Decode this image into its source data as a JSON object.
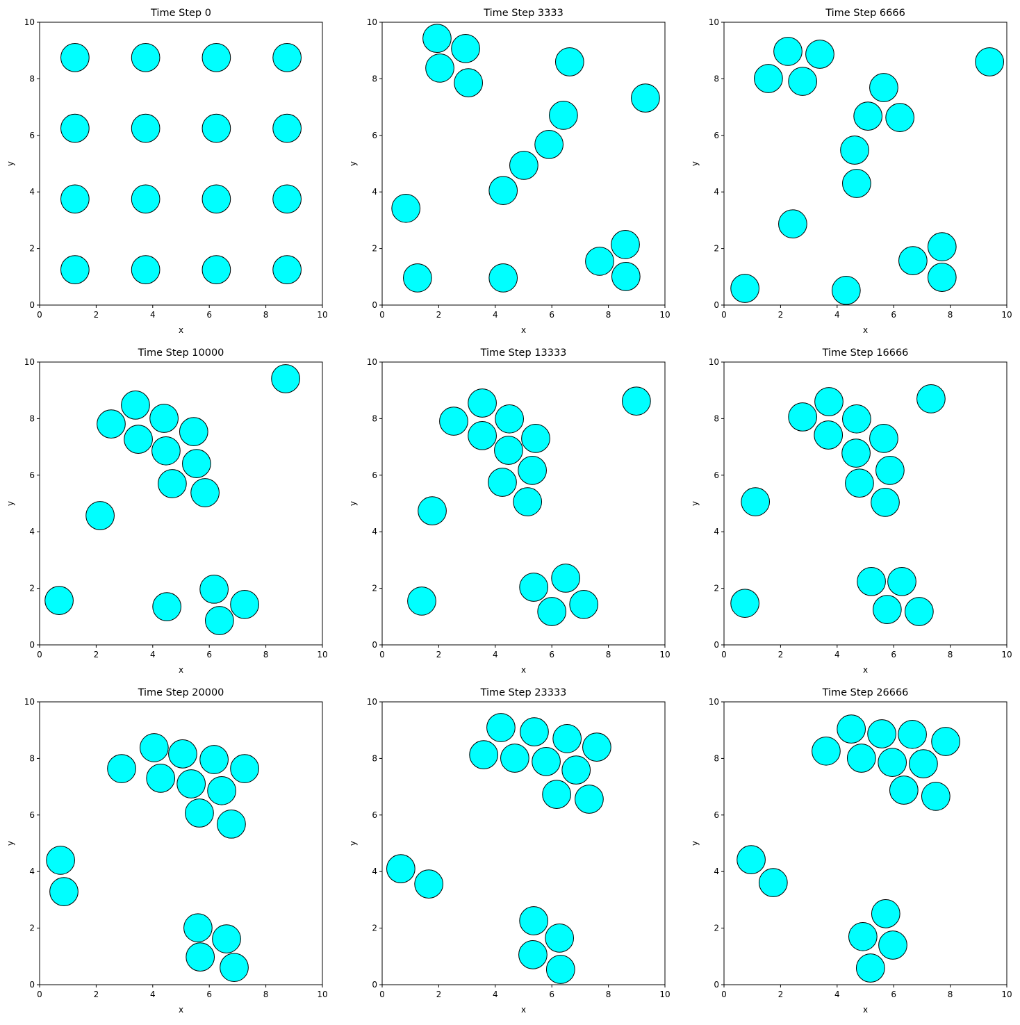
{
  "chart_data": {
    "type": "scatter",
    "marker_color": "#00ffff",
    "marker_edge": "#000000",
    "xlabel": "x",
    "ylabel": "y",
    "xlim": [
      0,
      10
    ],
    "ylim": [
      0,
      10
    ],
    "ticks": [
      "0",
      "2",
      "4",
      "6",
      "8",
      "10"
    ],
    "panels": [
      {
        "title": "Time Step 0",
        "points": [
          [
            1.25,
            8.75
          ],
          [
            3.75,
            8.75
          ],
          [
            6.25,
            8.75
          ],
          [
            8.75,
            8.75
          ],
          [
            1.25,
            6.25
          ],
          [
            3.75,
            6.25
          ],
          [
            6.25,
            6.25
          ],
          [
            8.75,
            6.25
          ],
          [
            1.25,
            3.75
          ],
          [
            3.75,
            3.75
          ],
          [
            6.25,
            3.75
          ],
          [
            8.75,
            3.75
          ],
          [
            1.25,
            1.25
          ],
          [
            3.75,
            1.25
          ],
          [
            6.25,
            1.25
          ],
          [
            8.75,
            1.25
          ]
        ]
      },
      {
        "title": "Time Step 3333",
        "points": [
          [
            1.94,
            9.43
          ],
          [
            2.95,
            9.07
          ],
          [
            2.04,
            8.38
          ],
          [
            3.05,
            7.86
          ],
          [
            6.63,
            8.6
          ],
          [
            9.31,
            7.32
          ],
          [
            6.41,
            6.71
          ],
          [
            5.9,
            5.68
          ],
          [
            5.01,
            4.94
          ],
          [
            4.28,
            4.05
          ],
          [
            0.84,
            3.42
          ],
          [
            1.25,
            0.96
          ],
          [
            4.28,
            0.96
          ],
          [
            7.69,
            1.55
          ],
          [
            8.6,
            2.14
          ],
          [
            8.62,
            1.01
          ]
        ]
      },
      {
        "title": "Time Step 6666",
        "points": [
          [
            2.26,
            8.97
          ],
          [
            3.39,
            8.87
          ],
          [
            1.57,
            8.01
          ],
          [
            2.78,
            7.91
          ],
          [
            9.39,
            8.6
          ],
          [
            5.65,
            7.69
          ],
          [
            5.09,
            6.68
          ],
          [
            6.22,
            6.63
          ],
          [
            4.62,
            5.48
          ],
          [
            4.69,
            4.3
          ],
          [
            2.43,
            2.87
          ],
          [
            0.74,
            0.59
          ],
          [
            4.32,
            0.52
          ],
          [
            6.68,
            1.57
          ],
          [
            7.71,
            2.06
          ],
          [
            7.71,
            0.98
          ]
        ]
      },
      {
        "title": "Time Step 10000",
        "points": [
          [
            8.7,
            9.41
          ],
          [
            3.39,
            8.48
          ],
          [
            2.53,
            7.81
          ],
          [
            4.4,
            8.01
          ],
          [
            5.45,
            7.54
          ],
          [
            3.49,
            7.27
          ],
          [
            4.47,
            6.86
          ],
          [
            5.55,
            6.41
          ],
          [
            4.69,
            5.7
          ],
          [
            5.85,
            5.38
          ],
          [
            2.14,
            4.57
          ],
          [
            0.69,
            1.57
          ],
          [
            4.5,
            1.35
          ],
          [
            6.17,
            1.97
          ],
          [
            7.25,
            1.43
          ],
          [
            6.36,
            0.86
          ]
        ]
      },
      {
        "title": "Time Step 13333",
        "points": [
          [
            8.99,
            8.62
          ],
          [
            3.54,
            8.55
          ],
          [
            2.53,
            7.91
          ],
          [
            4.5,
            7.99
          ],
          [
            3.54,
            7.4
          ],
          [
            5.43,
            7.3
          ],
          [
            4.47,
            6.88
          ],
          [
            5.31,
            6.17
          ],
          [
            4.25,
            5.75
          ],
          [
            5.14,
            5.06
          ],
          [
            1.77,
            4.74
          ],
          [
            1.4,
            1.55
          ],
          [
            5.36,
            2.04
          ],
          [
            6.49,
            2.36
          ],
          [
            7.13,
            1.43
          ],
          [
            6.0,
            1.18
          ]
        ]
      },
      {
        "title": "Time Step 16666",
        "points": [
          [
            7.32,
            8.7
          ],
          [
            3.71,
            8.6
          ],
          [
            2.78,
            8.06
          ],
          [
            4.69,
            7.99
          ],
          [
            3.69,
            7.42
          ],
          [
            5.65,
            7.3
          ],
          [
            4.67,
            6.78
          ],
          [
            5.87,
            6.17
          ],
          [
            4.79,
            5.72
          ],
          [
            5.7,
            5.04
          ],
          [
            1.11,
            5.06
          ],
          [
            0.74,
            1.47
          ],
          [
            5.21,
            2.24
          ],
          [
            6.29,
            2.24
          ],
          [
            5.77,
            1.25
          ],
          [
            6.9,
            1.18
          ]
        ]
      },
      {
        "title": "Time Step 20000",
        "points": [
          [
            4.05,
            8.38
          ],
          [
            5.06,
            8.16
          ],
          [
            2.9,
            7.64
          ],
          [
            6.17,
            7.96
          ],
          [
            7.25,
            7.64
          ],
          [
            4.28,
            7.3
          ],
          [
            5.36,
            7.1
          ],
          [
            6.44,
            6.86
          ],
          [
            5.65,
            6.07
          ],
          [
            6.78,
            5.68
          ],
          [
            0.74,
            4.4
          ],
          [
            0.86,
            3.29
          ],
          [
            5.6,
            2.01
          ],
          [
            6.61,
            1.62
          ],
          [
            5.68,
            0.98
          ],
          [
            6.88,
            0.61
          ]
        ]
      },
      {
        "title": "Time Step 23333",
        "points": [
          [
            4.2,
            9.09
          ],
          [
            5.38,
            8.94
          ],
          [
            6.54,
            8.7
          ],
          [
            7.59,
            8.4
          ],
          [
            3.59,
            8.13
          ],
          [
            4.69,
            8.01
          ],
          [
            5.8,
            7.89
          ],
          [
            6.86,
            7.59
          ],
          [
            6.17,
            6.73
          ],
          [
            7.32,
            6.56
          ],
          [
            0.66,
            4.1
          ],
          [
            1.65,
            3.56
          ],
          [
            5.36,
            2.26
          ],
          [
            6.27,
            1.65
          ],
          [
            5.33,
            1.06
          ],
          [
            6.31,
            0.54
          ]
        ]
      },
      {
        "title": "Time Step 26666",
        "points": [
          [
            4.5,
            9.04
          ],
          [
            5.58,
            8.87
          ],
          [
            6.66,
            8.85
          ],
          [
            7.84,
            8.6
          ],
          [
            3.61,
            8.26
          ],
          [
            4.86,
            8.01
          ],
          [
            5.95,
            7.86
          ],
          [
            7.05,
            7.81
          ],
          [
            6.36,
            6.88
          ],
          [
            7.49,
            6.66
          ],
          [
            0.96,
            4.42
          ],
          [
            1.74,
            3.61
          ],
          [
            5.72,
            2.51
          ],
          [
            4.91,
            1.7
          ],
          [
            5.97,
            1.4
          ],
          [
            5.18,
            0.59
          ]
        ]
      }
    ]
  }
}
